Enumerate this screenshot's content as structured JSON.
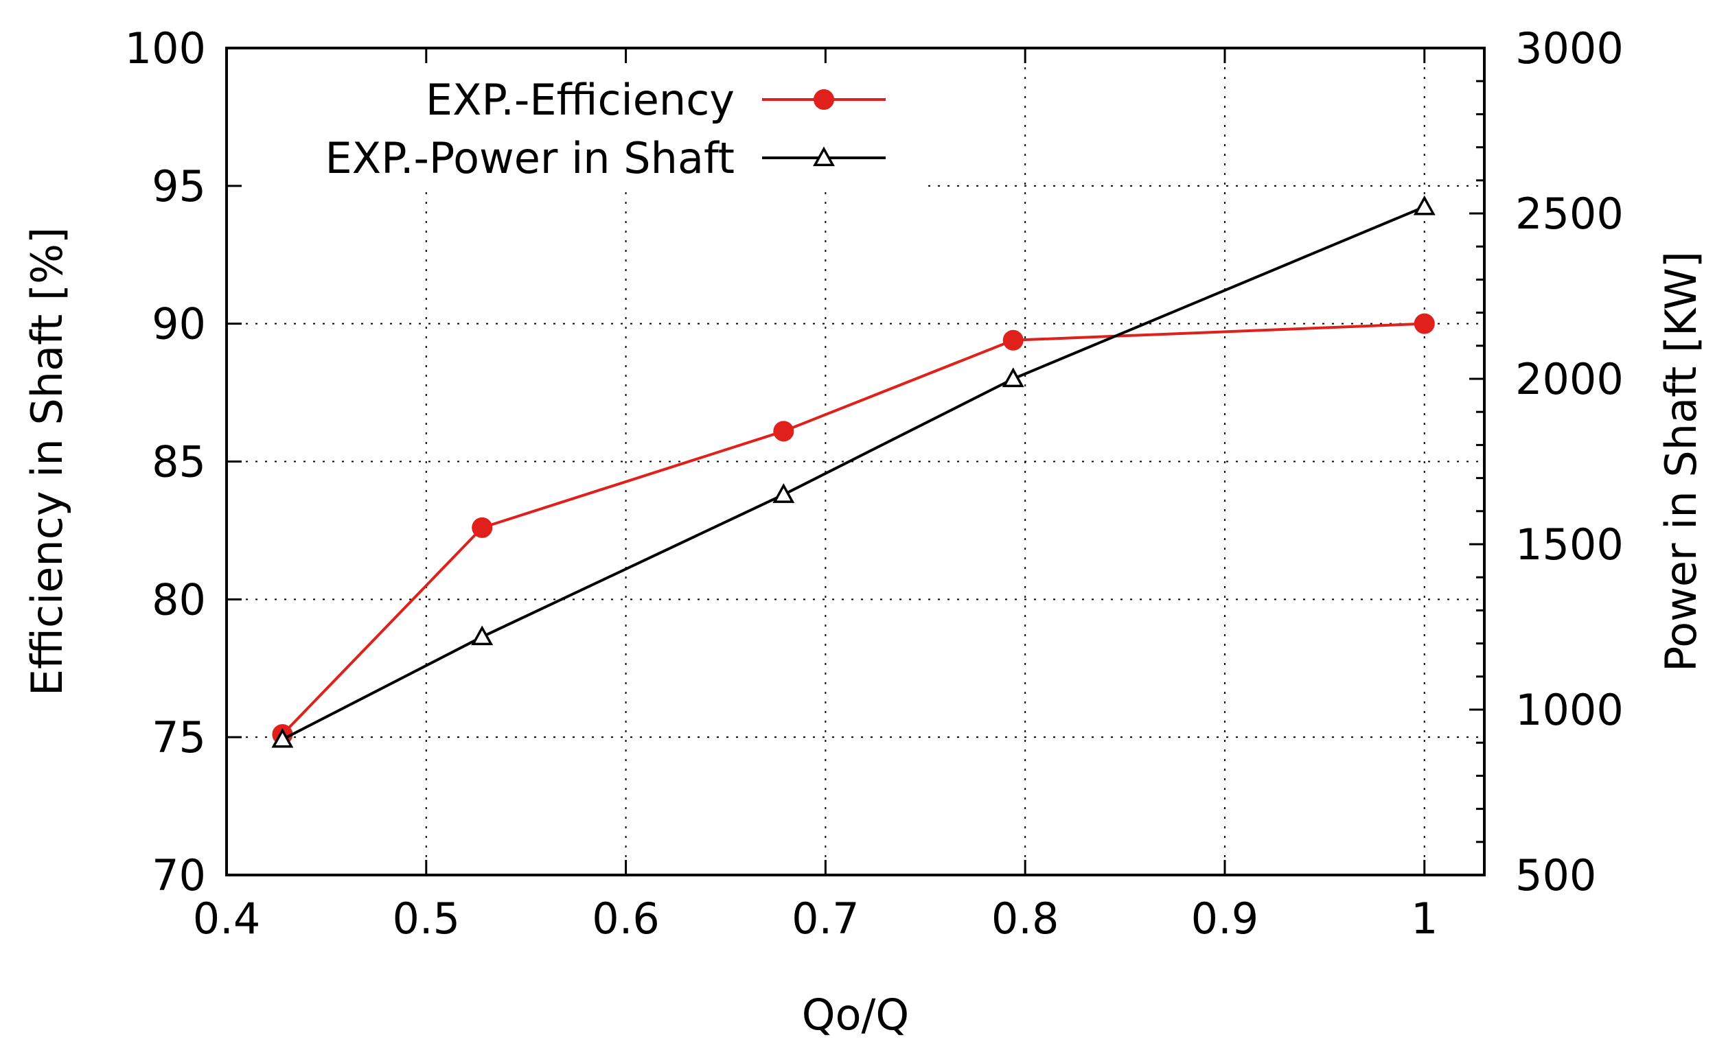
{
  "chart_data": {
    "type": "line",
    "xlabel": "Qo/Q",
    "ylabel_left": "Efficiency in Shaft [%]",
    "ylabel_right": "Power in Shaft [KW]",
    "xlim": [
      0.4,
      1.03
    ],
    "ylim_left": [
      70,
      100
    ],
    "ylim_right": [
      500,
      3000
    ],
    "x_ticks": [
      0.4,
      0.5,
      0.6,
      0.7,
      0.8,
      0.9,
      1
    ],
    "x_tick_labels": [
      "0.4",
      "0.5",
      "0.6",
      "0.7",
      "0.8",
      "0.9",
      "1"
    ],
    "y_left_ticks": [
      70,
      75,
      80,
      85,
      90,
      95,
      100
    ],
    "y_left_tick_labels": [
      "70",
      "75",
      "80",
      "85",
      "90",
      "95",
      "100"
    ],
    "y_right_ticks": [
      500,
      1000,
      1500,
      2000,
      2500,
      3000
    ],
    "y_right_tick_labels": [
      "500",
      "1000",
      "1500",
      "2000",
      "2500",
      "3000"
    ],
    "grid": true,
    "legend_position": "top-left",
    "series": [
      {
        "name": "EXP.-Efficiency",
        "axis": "left",
        "color": "#e0211b",
        "marker": "filled-circle",
        "x": [
          0.428,
          0.528,
          0.679,
          0.794,
          1.0
        ],
        "values": [
          75.1,
          82.6,
          86.1,
          89.4,
          90.0
        ]
      },
      {
        "name": "EXP.-Power in Shaft",
        "axis": "right",
        "color": "#000000",
        "marker": "open-triangle",
        "x": [
          0.428,
          0.528,
          0.679,
          0.794,
          1.0
        ],
        "values": [
          910,
          1220,
          1650,
          2000,
          2520
        ]
      }
    ]
  }
}
